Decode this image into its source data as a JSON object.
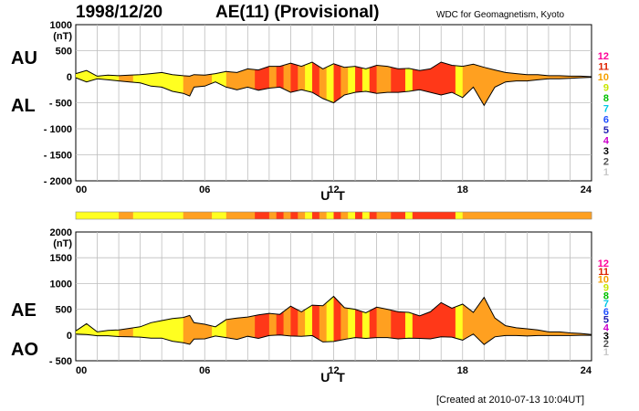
{
  "header": {
    "date": "1998/12/20",
    "title": "AE(11) (Provisional)",
    "source": "WDC for Geomagnetism, Kyoto"
  },
  "footer": {
    "created": "[Created at 2010-07-13 10:04UT]"
  },
  "colors": {
    "level_scale": [
      "#c8c8c8",
      "#505050",
      "#000000",
      "#cc00cc",
      "#2020b0",
      "#2050ff",
      "#00c8e6",
      "#00c000",
      "#c8e600",
      "#f5a000",
      "#dd2200",
      "#ff0099"
    ],
    "band": {
      "1": "#ffff20",
      "2": "#ffa020",
      "3": "#ff3818"
    }
  },
  "chart_data": [
    {
      "type": "area",
      "panel": "AU/AL",
      "labels": {
        "upper": "AU",
        "lower": "AL"
      },
      "units": "(nT)",
      "xlabel": "U T",
      "xticks": [
        "00",
        "06",
        "12",
        "18",
        "24"
      ],
      "ylim": [
        -2000,
        1000
      ],
      "yticks": [
        "1000",
        "500",
        "0",
        "- 500",
        "- 1000",
        "- 1500",
        "- 2000"
      ],
      "yticks_values": [
        1000,
        500,
        0,
        -500,
        -1000,
        -1500,
        -2000
      ],
      "grid": true,
      "legend_levels": [
        "12",
        "11",
        "10",
        "9",
        "8",
        "7",
        "6",
        "5",
        "4",
        "3",
        "2",
        "1"
      ],
      "x_hours": [
        0,
        0.5,
        1,
        1.5,
        2,
        2.5,
        3,
        3.5,
        4,
        4.5,
        5,
        5.3,
        5.5,
        6,
        6.5,
        7,
        7.5,
        8,
        8.5,
        9,
        9.5,
        10,
        10.5,
        11,
        11.5,
        12,
        12.5,
        13,
        13.5,
        14,
        14.5,
        15,
        15.5,
        16,
        16.5,
        17,
        17.5,
        18,
        18.5,
        19,
        19.5,
        20,
        20.5,
        21,
        21.5,
        22,
        22.5,
        23,
        23.5,
        24
      ],
      "series": [
        {
          "name": "AU",
          "values": [
            60,
            120,
            10,
            30,
            20,
            30,
            40,
            60,
            80,
            40,
            20,
            10,
            40,
            30,
            60,
            100,
            80,
            150,
            130,
            200,
            200,
            260,
            200,
            280,
            150,
            250,
            180,
            200,
            150,
            220,
            200,
            150,
            160,
            120,
            150,
            280,
            220,
            200,
            240,
            180,
            130,
            80,
            60,
            40,
            40,
            20,
            20,
            10,
            10,
            0
          ]
        },
        {
          "name": "AL",
          "values": [
            -20,
            -100,
            -40,
            -60,
            -80,
            -100,
            -120,
            -180,
            -200,
            -280,
            -320,
            -370,
            -200,
            -180,
            -100,
            -200,
            -250,
            -200,
            -260,
            -220,
            -200,
            -300,
            -250,
            -300,
            -420,
            -500,
            -350,
            -300,
            -280,
            -320,
            -300,
            -300,
            -280,
            -250,
            -300,
            -350,
            -300,
            -400,
            -200,
            -550,
            -200,
            -100,
            -80,
            -80,
            -60,
            -40,
            -40,
            -30,
            -20,
            -10
          ]
        }
      ]
    },
    {
      "type": "area",
      "panel": "AE/AO",
      "labels": {
        "upper": "AE",
        "lower": "AO"
      },
      "units": "(nT)",
      "xlabel": "U T",
      "xticks": [
        "00",
        "06",
        "12",
        "18",
        "24"
      ],
      "ylim": [
        -500,
        2000
      ],
      "yticks": [
        "2000",
        "1500",
        "1000",
        "500",
        "0",
        "- 500"
      ],
      "yticks_values": [
        2000,
        1500,
        1000,
        500,
        0,
        -500
      ],
      "grid": true,
      "legend_levels": [
        "12",
        "11",
        "10",
        "9",
        "8",
        "7",
        "6",
        "5",
        "4",
        "3",
        "2",
        "1"
      ],
      "x_hours": [
        0,
        0.5,
        1,
        1.5,
        2,
        2.5,
        3,
        3.5,
        4,
        4.5,
        5,
        5.3,
        5.5,
        6,
        6.5,
        7,
        7.5,
        8,
        8.5,
        9,
        9.5,
        10,
        10.5,
        11,
        11.5,
        12,
        12.5,
        13,
        13.5,
        14,
        14.5,
        15,
        15.5,
        16,
        16.5,
        17,
        17.5,
        18,
        18.5,
        19,
        19.5,
        20,
        20.5,
        21,
        21.5,
        22,
        22.5,
        23,
        23.5,
        24
      ],
      "series": [
        {
          "name": "AE",
          "values": [
            80,
            220,
            60,
            90,
            100,
            130,
            160,
            240,
            280,
            320,
            340,
            380,
            240,
            210,
            160,
            300,
            330,
            350,
            390,
            420,
            400,
            560,
            450,
            580,
            570,
            750,
            530,
            500,
            430,
            540,
            500,
            450,
            440,
            370,
            450,
            630,
            520,
            600,
            440,
            730,
            330,
            180,
            140,
            120,
            100,
            60,
            60,
            40,
            30,
            10
          ]
        },
        {
          "name": "AO",
          "values": [
            20,
            10,
            -15,
            -15,
            -30,
            -35,
            -40,
            -60,
            -60,
            -120,
            -150,
            -180,
            -80,
            -75,
            -20,
            -50,
            -85,
            -25,
            -65,
            -10,
            0,
            -20,
            -25,
            -10,
            -135,
            -125,
            -85,
            -50,
            -65,
            -50,
            -50,
            -75,
            -60,
            -65,
            -75,
            -35,
            -40,
            -100,
            20,
            -185,
            -35,
            -10,
            -10,
            -20,
            -10,
            -10,
            -10,
            -10,
            -5,
            -5
          ]
        }
      ]
    }
  ],
  "activity_band": {
    "levels": [
      1,
      1,
      1,
      1,
      1,
      1,
      2,
      2,
      1,
      1,
      1,
      1,
      1,
      1,
      1,
      2,
      2,
      2,
      2,
      1,
      1,
      2,
      2,
      2,
      2,
      3,
      3,
      2,
      3,
      2,
      3,
      2,
      1,
      3,
      2,
      1,
      3,
      2,
      1,
      3,
      1,
      3,
      2,
      2,
      3,
      3,
      1,
      3,
      3,
      3,
      3,
      3,
      3,
      1,
      2,
      2,
      2,
      2,
      2,
      2,
      2,
      2,
      2,
      2,
      2,
      2,
      2,
      2,
      2,
      2,
      2,
      2
    ]
  }
}
